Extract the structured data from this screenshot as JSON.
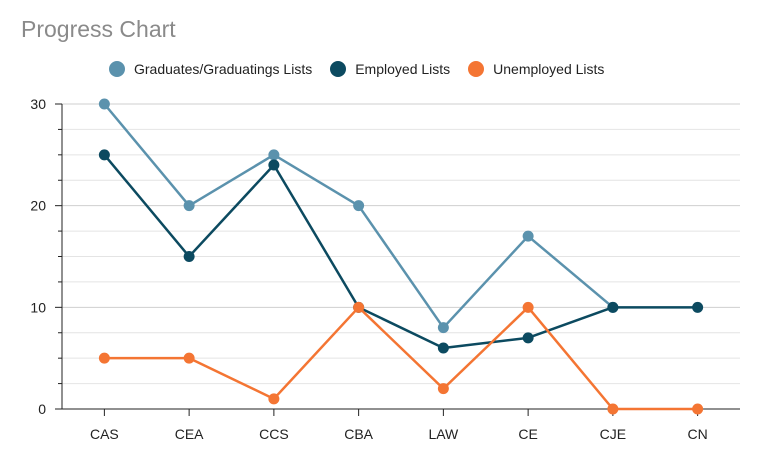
{
  "chart_data": {
    "type": "line",
    "title": "Progress Chart",
    "categories": [
      "CAS",
      "CEA",
      "CCS",
      "CBA",
      "LAW",
      "CE",
      "CJE",
      "CN"
    ],
    "ylim": [
      0,
      30
    ],
    "yticks": [
      0,
      10,
      20,
      30
    ],
    "grid": true,
    "legend_position": "top",
    "series": [
      {
        "name": "Graduates/Graduatings Lists",
        "color": "#5b92ad",
        "values": [
          30,
          20,
          25,
          20,
          8,
          17,
          10,
          null
        ]
      },
      {
        "name": "Employed Lists",
        "color": "#0c4a60",
        "values": [
          25,
          15,
          24,
          10,
          6,
          7,
          10,
          10
        ]
      },
      {
        "name": "Unemployed Lists",
        "color": "#f47533",
        "values": [
          5,
          5,
          1,
          10,
          2,
          10,
          0,
          0
        ]
      }
    ]
  }
}
